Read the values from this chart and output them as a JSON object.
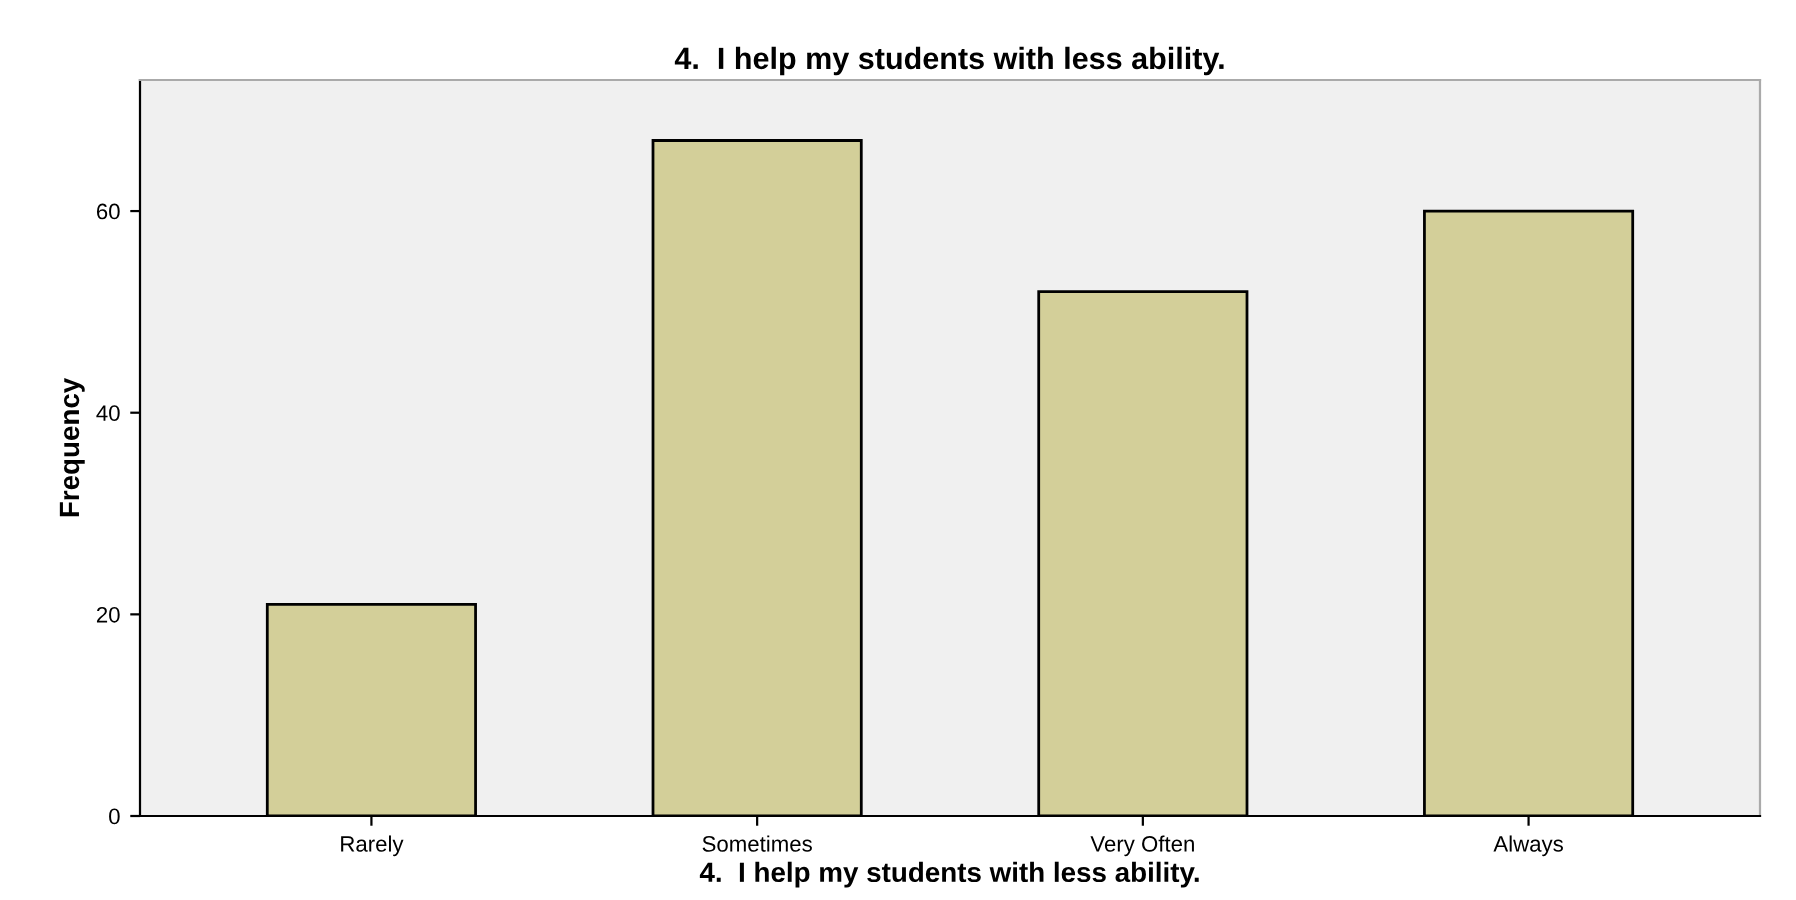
{
  "chart_data": {
    "type": "bar",
    "title": "4.  I help my students with less ability.",
    "xlabel": "4.  I help my students with less ability.",
    "ylabel": "Frequency",
    "categories": [
      "Rarely",
      "Sometimes",
      "Very Often",
      "Always"
    ],
    "values": [
      21,
      67,
      52,
      60
    ],
    "color": "#d3cf99",
    "ylim": [
      0,
      73
    ],
    "yticks": [
      0,
      20,
      40,
      60
    ],
    "grid": false,
    "legend": false
  }
}
